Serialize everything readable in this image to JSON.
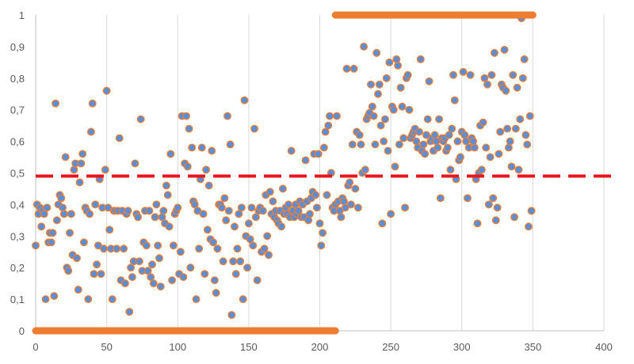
{
  "chart_data": {
    "type": "scatter",
    "title": "",
    "xlabel": "",
    "ylabel": "",
    "xlim": [
      0,
      400
    ],
    "ylim": [
      0,
      1
    ],
    "grid": {
      "x": true,
      "y": false
    },
    "legend": "none",
    "x_ticks": [
      "0",
      "50",
      "100",
      "150",
      "200",
      "250",
      "300",
      "350",
      "400"
    ],
    "y_ticks": [
      "0",
      "0,1",
      "0,2",
      "0,3",
      "0,4",
      "0,5",
      "0,6",
      "0,7",
      "0,8",
      "0,9",
      "1"
    ],
    "colors": {
      "marker_fill": "#5b8ed6",
      "marker_edge": "#ed7d31",
      "threshold": "#e8161b",
      "regime_bar": "#ed7d31",
      "grid": "#d9d9d9",
      "axis": "#bfbfbf"
    },
    "threshold": {
      "y": 0.49,
      "style": "dashed"
    },
    "regime_bars": [
      {
        "x_start": 0,
        "x_end": 211,
        "y": 0
      },
      {
        "x_start": 211,
        "x_end": 350,
        "y": 1
      }
    ],
    "points": [
      [
        0,
        0.27
      ],
      [
        1,
        0.4
      ],
      [
        2,
        0.37
      ],
      [
        3,
        0.39
      ],
      [
        4,
        0.33
      ],
      [
        5,
        0.38
      ],
      [
        6,
        0.37
      ],
      [
        7,
        0.1
      ],
      [
        8,
        0.39
      ],
      [
        9,
        0.28
      ],
      [
        10,
        0.31
      ],
      [
        11,
        0.28
      ],
      [
        12,
        0.31
      ],
      [
        13,
        0.11
      ],
      [
        14,
        0.72
      ],
      [
        15,
        0.35
      ],
      [
        16,
        0.4
      ],
      [
        17,
        0.43
      ],
      [
        18,
        0.42
      ],
      [
        19,
        0.39
      ],
      [
        20,
        0.37
      ],
      [
        21,
        0.55
      ],
      [
        22,
        0.2
      ],
      [
        23,
        0.19
      ],
      [
        24,
        0.31
      ],
      [
        25,
        0.37
      ],
      [
        26,
        0.24
      ],
      [
        27,
        0.51
      ],
      [
        28,
        0.53
      ],
      [
        29,
        0.23
      ],
      [
        30,
        0.13
      ],
      [
        31,
        0.47
      ],
      [
        32,
        0.53
      ],
      [
        33,
        0.56
      ],
      [
        34,
        0.28
      ],
      [
        35,
        0.39
      ],
      [
        36,
        0.38
      ],
      [
        37,
        0.1
      ],
      [
        38,
        0.37
      ],
      [
        39,
        0.63
      ],
      [
        40,
        0.72
      ],
      [
        41,
        0.18
      ],
      [
        42,
        0.4
      ],
      [
        43,
        0.21
      ],
      [
        44,
        0.27
      ],
      [
        45,
        0.48
      ],
      [
        46,
        0.18
      ],
      [
        47,
        0.39
      ],
      [
        48,
        0.26
      ],
      [
        49,
        0.51
      ],
      [
        50,
        0.76
      ],
      [
        51,
        0.39
      ],
      [
        52,
        0.32
      ],
      [
        53,
        0.26
      ],
      [
        54,
        0.1
      ],
      [
        55,
        0.38
      ],
      [
        56,
        0.38
      ],
      [
        57,
        0.26
      ],
      [
        58,
        0.38
      ],
      [
        59,
        0.61
      ],
      [
        60,
        0.16
      ],
      [
        61,
        0.38
      ],
      [
        62,
        0.26
      ],
      [
        63,
        0.15
      ],
      [
        64,
        0.37
      ],
      [
        65,
        0.38
      ],
      [
        66,
        0.06
      ],
      [
        67,
        0.2
      ],
      [
        68,
        0.17
      ],
      [
        69,
        0.22
      ],
      [
        70,
        0.53
      ],
      [
        71,
        0.37
      ],
      [
        72,
        0.36
      ],
      [
        73,
        0.22
      ],
      [
        74,
        0.67
      ],
      [
        75,
        0.19
      ],
      [
        76,
        0.28
      ],
      [
        77,
        0.38
      ],
      [
        78,
        0.27
      ],
      [
        79,
        0.19
      ],
      [
        80,
        0.38
      ],
      [
        81,
        0.17
      ],
      [
        82,
        0.21
      ],
      [
        83,
        0.15
      ],
      [
        84,
        0.36
      ],
      [
        85,
        0.4
      ],
      [
        86,
        0.27
      ],
      [
        87,
        0.23
      ],
      [
        88,
        0.14
      ],
      [
        89,
        0.36
      ],
      [
        90,
        0.38
      ],
      [
        91,
        0.34
      ],
      [
        92,
        0.46
      ],
      [
        93,
        0.43
      ],
      [
        94,
        0.33
      ],
      [
        95,
        0.56
      ],
      [
        96,
        0.16
      ],
      [
        97,
        0.27
      ],
      [
        98,
        0.37
      ],
      [
        99,
        0.38
      ],
      [
        100,
        0.39
      ],
      [
        101,
        0.18
      ],
      [
        102,
        0.25
      ],
      [
        103,
        0.68
      ],
      [
        104,
        0.17
      ],
      [
        105,
        0.53
      ],
      [
        106,
        0.68
      ],
      [
        107,
        0.52
      ],
      [
        108,
        0.64
      ],
      [
        109,
        0.2
      ],
      [
        110,
        0.58
      ],
      [
        111,
        0.41
      ],
      [
        112,
        0.4
      ],
      [
        113,
        0.1
      ],
      [
        114,
        0.38
      ],
      [
        115,
        0.26
      ],
      [
        116,
        0.48
      ],
      [
        117,
        0.58
      ],
      [
        118,
        0.37
      ],
      [
        119,
        0.18
      ],
      [
        120,
        0.51
      ],
      [
        121,
        0.32
      ],
      [
        122,
        0.46
      ],
      [
        123,
        0.29
      ],
      [
        124,
        0.57
      ],
      [
        125,
        0.28
      ],
      [
        126,
        0.16
      ],
      [
        127,
        0.12
      ],
      [
        128,
        0.26
      ],
      [
        129,
        0.4
      ],
      [
        130,
        0.4
      ],
      [
        131,
        0.39
      ],
      [
        132,
        0.22
      ],
      [
        133,
        0.42
      ],
      [
        134,
        0.35
      ],
      [
        135,
        0.68
      ],
      [
        136,
        0.38
      ],
      [
        137,
        0.59
      ],
      [
        138,
        0.05
      ],
      [
        139,
        0.22
      ],
      [
        140,
        0.33
      ],
      [
        141,
        0.18
      ],
      [
        142,
        0.26
      ],
      [
        143,
        0.37
      ],
      [
        144,
        0.22
      ],
      [
        145,
        0.39
      ],
      [
        146,
        0.1
      ],
      [
        147,
        0.73
      ],
      [
        148,
        0.3
      ],
      [
        149,
        0.2
      ],
      [
        150,
        0.34
      ],
      [
        151,
        0.29
      ],
      [
        152,
        0.39
      ],
      [
        153,
        0.27
      ],
      [
        154,
        0.64
      ],
      [
        155,
        0.36
      ],
      [
        156,
        0.16
      ],
      [
        157,
        0.38
      ],
      [
        158,
        0.39
      ],
      [
        159,
        0.25
      ],
      [
        160,
        0.38
      ],
      [
        161,
        0.26
      ],
      [
        162,
        0.43
      ],
      [
        163,
        0.3
      ],
      [
        164,
        0.24
      ],
      [
        165,
        0.44
      ],
      [
        166,
        0.37
      ],
      [
        167,
        0.41
      ],
      [
        168,
        0.36
      ],
      [
        169,
        0.38
      ],
      [
        170,
        0.35
      ],
      [
        171,
        0.34
      ],
      [
        172,
        0.38
      ],
      [
        173,
        0.33
      ],
      [
        174,
        0.45
      ],
      [
        175,
        0.37
      ],
      [
        176,
        0.39
      ],
      [
        177,
        0.37
      ],
      [
        178,
        0.4
      ],
      [
        179,
        0.36
      ],
      [
        180,
        0.57
      ],
      [
        181,
        0.38
      ],
      [
        182,
        0.36
      ],
      [
        183,
        0.4
      ],
      [
        184,
        0.37
      ],
      [
        185,
        0.38
      ],
      [
        186,
        0.41
      ],
      [
        187,
        0.36
      ],
      [
        188,
        0.4
      ],
      [
        189,
        0.36
      ],
      [
        190,
        0.54
      ],
      [
        191,
        0.41
      ],
      [
        192,
        0.35
      ],
      [
        193,
        0.37
      ],
      [
        194,
        0.42
      ],
      [
        195,
        0.44
      ],
      [
        196,
        0.56
      ],
      [
        197,
        0.43
      ],
      [
        198,
        0.39
      ],
      [
        199,
        0.56
      ],
      [
        200,
        0.34
      ],
      [
        201,
        0.27
      ],
      [
        202,
        0.31
      ],
      [
        203,
        0.58
      ],
      [
        204,
        0.63
      ],
      [
        205,
        0.43
      ],
      [
        206,
        0.65
      ],
      [
        207,
        0.68
      ],
      [
        208,
        0.5
      ],
      [
        209,
        0.39
      ],
      [
        210,
        0.38
      ],
      [
        211,
        0.4
      ],
      [
        212,
        0.68
      ],
      [
        213,
        0.41
      ],
      [
        214,
        0.38
      ],
      [
        215,
        0.36
      ],
      [
        216,
        0.42
      ],
      [
        217,
        0.41
      ],
      [
        218,
        0.39
      ],
      [
        219,
        0.83
      ],
      [
        220,
        0.46
      ],
      [
        221,
        0.47
      ],
      [
        222,
        0.4
      ],
      [
        223,
        0.59
      ],
      [
        224,
        0.83
      ],
      [
        225,
        0.45
      ],
      [
        226,
        0.63
      ],
      [
        227,
        0.39
      ],
      [
        228,
        0.62
      ],
      [
        229,
        0.59
      ],
      [
        230,
        0.5
      ],
      [
        231,
        0.9
      ],
      [
        232,
        0.51
      ],
      [
        233,
        0.67
      ],
      [
        234,
        0.68
      ],
      [
        235,
        0.69
      ],
      [
        236,
        0.78
      ],
      [
        237,
        0.71
      ],
      [
        238,
        0.68
      ],
      [
        239,
        0.59
      ],
      [
        240,
        0.88
      ],
      [
        241,
        0.75
      ],
      [
        242,
        0.78
      ],
      [
        243,
        0.65
      ],
      [
        244,
        0.34
      ],
      [
        245,
        0.6
      ],
      [
        246,
        0.67
      ],
      [
        247,
        0.8
      ],
      [
        248,
        0.57
      ],
      [
        249,
        0.85
      ],
      [
        250,
        0.37
      ],
      [
        251,
        0.71
      ],
      [
        252,
        0.7
      ],
      [
        253,
        0.52
      ],
      [
        254,
        0.86
      ],
      [
        255,
        0.84
      ],
      [
        256,
        0.59
      ],
      [
        257,
        0.77
      ],
      [
        258,
        0.71
      ],
      [
        259,
        0.61
      ],
      [
        260,
        0.39
      ],
      [
        261,
        0.8
      ],
      [
        262,
        0.81
      ],
      [
        263,
        0.7
      ],
      [
        264,
        0.61
      ],
      [
        265,
        0.62
      ],
      [
        266,
        0.63
      ],
      [
        267,
        0.64
      ],
      [
        268,
        0.6
      ],
      [
        269,
        0.58
      ],
      [
        270,
        0.63
      ],
      [
        271,
        0.86
      ],
      [
        272,
        0.57
      ],
      [
        273,
        0.59
      ],
      [
        274,
        0.56
      ],
      [
        275,
        0.62
      ],
      [
        276,
        0.67
      ],
      [
        277,
        0.79
      ],
      [
        278,
        0.6
      ],
      [
        279,
        0.61
      ],
      [
        280,
        0.57
      ],
      [
        281,
        0.62
      ],
      [
        282,
        0.6
      ],
      [
        283,
        0.58
      ],
      [
        284,
        0.67
      ],
      [
        285,
        0.42
      ],
      [
        286,
        0.61
      ],
      [
        287,
        0.6
      ],
      [
        288,
        0.61
      ],
      [
        289,
        0.57
      ],
      [
        290,
        0.58
      ],
      [
        291,
        0.62
      ],
      [
        292,
        0.51
      ],
      [
        293,
        0.64
      ],
      [
        294,
        0.81
      ],
      [
        295,
        0.73
      ],
      [
        296,
        0.48
      ],
      [
        297,
        0.6
      ],
      [
        298,
        0.54
      ],
      [
        299,
        0.55
      ],
      [
        300,
        0.63
      ],
      [
        301,
        0.82
      ],
      [
        302,
        0.62
      ],
      [
        303,
        0.6
      ],
      [
        304,
        0.42
      ],
      [
        305,
        0.58
      ],
      [
        306,
        0.81
      ],
      [
        307,
        0.61
      ],
      [
        308,
        0.6
      ],
      [
        309,
        0.58
      ],
      [
        310,
        0.48
      ],
      [
        311,
        0.34
      ],
      [
        312,
        0.5
      ],
      [
        313,
        0.65
      ],
      [
        314,
        0.51
      ],
      [
        315,
        0.66
      ],
      [
        316,
        0.8
      ],
      [
        317,
        0.58
      ],
      [
        318,
        0.78
      ],
      [
        319,
        0.4
      ],
      [
        320,
        0.55
      ],
      [
        321,
        0.81
      ],
      [
        322,
        0.42
      ],
      [
        323,
        0.88
      ],
      [
        324,
        0.35
      ],
      [
        325,
        0.39
      ],
      [
        326,
        0.56
      ],
      [
        327,
        0.63
      ],
      [
        328,
        0.78
      ],
      [
        329,
        0.77
      ],
      [
        330,
        0.89
      ],
      [
        331,
        0.76
      ],
      [
        332,
        0.64
      ],
      [
        333,
        0.58
      ],
      [
        334,
        0.6
      ],
      [
        335,
        0.52
      ],
      [
        336,
        0.81
      ],
      [
        337,
        0.36
      ],
      [
        338,
        0.64
      ],
      [
        339,
        0.77
      ],
      [
        340,
        0.51
      ],
      [
        341,
        0.67
      ],
      [
        342,
        0.99
      ],
      [
        343,
        0.8
      ],
      [
        344,
        0.86
      ],
      [
        345,
        0.62
      ],
      [
        346,
        0.59
      ],
      [
        347,
        0.33
      ],
      [
        348,
        0.68
      ],
      [
        349,
        0.38
      ]
    ]
  }
}
